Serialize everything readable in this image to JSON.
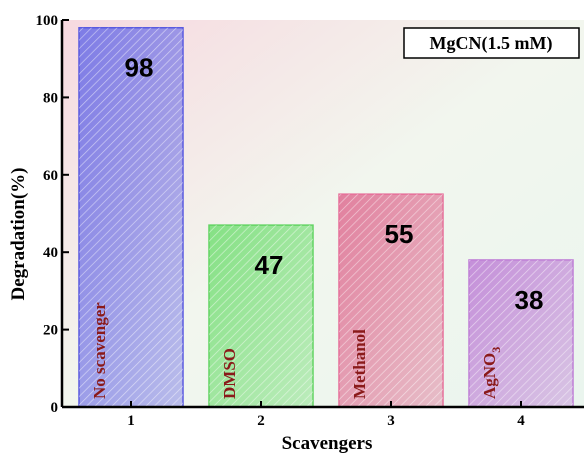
{
  "chart_data": {
    "type": "bar",
    "categories": [
      "1",
      "2",
      "3",
      "4"
    ],
    "values": [
      98,
      47,
      55,
      38
    ],
    "bar_labels": [
      {
        "text": "No scavenger"
      },
      {
        "text": "DMSO"
      },
      {
        "text": "Methanol"
      },
      {
        "text": "AgNO",
        "sub": "3"
      }
    ],
    "value_labels": [
      "98",
      "47",
      "55",
      "38"
    ],
    "legend_title": "MgCN(1.5 mM)",
    "xlabel": "Scavengers",
    "ylabel": "Degradation(%)",
    "ylim": [
      0,
      100
    ],
    "yticks": [
      "0",
      "20",
      "40",
      "60",
      "80",
      "100"
    ],
    "bar_colors": [
      "#7777e6",
      "#7fe07f",
      "#e07a9a",
      "#c28ad8"
    ],
    "bar_border_colors": [
      "#5a5ae0",
      "#63d463",
      "#e6709a",
      "#bf7fd6"
    ],
    "background_gradient": [
      "#f7d9e0",
      "#f2f6ee",
      "#eaf5ee"
    ],
    "grid": false,
    "legend_position": "top-right"
  }
}
